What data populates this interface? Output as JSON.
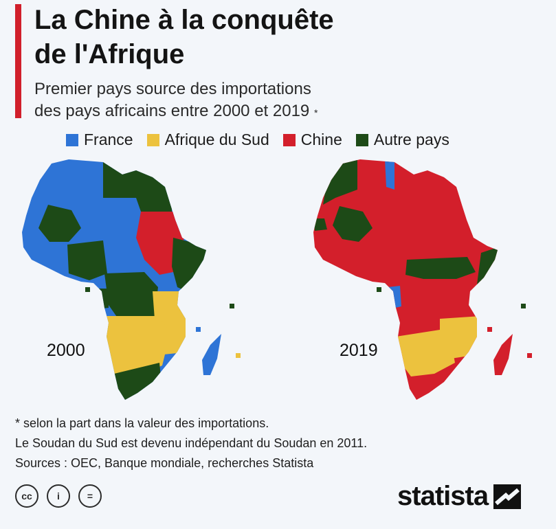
{
  "header": {
    "title_line1": "La Chine à la conquête",
    "title_line2": "de l'Afrique",
    "subtitle_line1": "Premier pays source des importations",
    "subtitle_line2": "des pays africains entre 2000 et 2019",
    "subtitle_mark": "*"
  },
  "legend": [
    {
      "label": "France",
      "color": "#2e74d6"
    },
    {
      "label": "Afrique du Sud",
      "color": "#ecc23e"
    },
    {
      "label": "Chine",
      "color": "#d31f2b"
    },
    {
      "label": "Autre pays",
      "color": "#1d4a17"
    }
  ],
  "maps": {
    "left_year": "2000",
    "right_year": "2019"
  },
  "notes": {
    "line1": "* selon la part dans la valeur des importations.",
    "line2": "Le Soudan du Sud est devenu indépendant du Soudan en 2011.",
    "line3": "Sources : OEC, Banque mondiale, recherches Statista"
  },
  "footer": {
    "cc_label": "cc",
    "by_label": "i",
    "nd_label": "=",
    "brand": "statista"
  }
}
